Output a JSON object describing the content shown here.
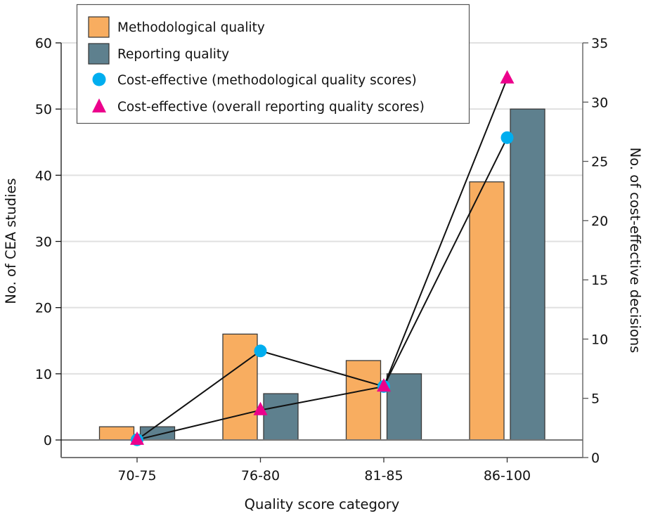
{
  "chart_data": {
    "type": "bar",
    "title": "",
    "categories": [
      "70-75",
      "76-80",
      "81-85",
      "86-100"
    ],
    "xlabel": "Quality score category",
    "ylabel": "No. of CEA studies",
    "y2label": "No. of cost-effective decisions",
    "ylim": [
      0,
      60
    ],
    "yticks": [
      0,
      10,
      20,
      30,
      40,
      50,
      60
    ],
    "y2lim": [
      0,
      35
    ],
    "y2ticks": [
      0,
      5,
      10,
      15,
      20,
      25,
      30,
      35
    ],
    "grid": true,
    "legend_position": "top-left",
    "series": [
      {
        "name": "Methodological quality",
        "type": "bar",
        "axis": "left",
        "color": "#F8AD60",
        "values": [
          2,
          16,
          12,
          39
        ]
      },
      {
        "name": "Reporting quality",
        "type": "bar",
        "axis": "left",
        "color": "#5E808E",
        "values": [
          2,
          7,
          10,
          50
        ]
      },
      {
        "name": "Cost-effective (methodological quality scores)",
        "type": "line",
        "marker": "circle",
        "axis": "right",
        "color": "#00AEEF",
        "values": [
          1.5,
          9,
          6,
          27
        ]
      },
      {
        "name": "Cost-effective (overall reporting quality scores)",
        "type": "line",
        "marker": "triangle",
        "axis": "right",
        "color": "#EC008C",
        "values": [
          1.5,
          4,
          6,
          32
        ]
      }
    ]
  }
}
